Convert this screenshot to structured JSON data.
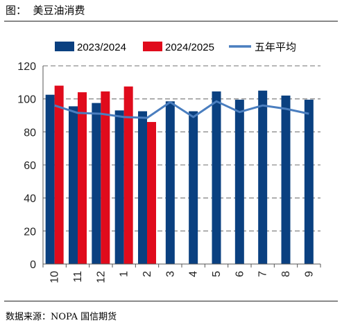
{
  "header": {
    "figure_title": "图：  美豆油消费"
  },
  "footer": {
    "source": "数据来源：NOPA 国信期货"
  },
  "chart_data": {
    "type": "bar",
    "categories": [
      "10",
      "11",
      "12",
      "1",
      "2",
      "3",
      "4",
      "5",
      "6",
      "7",
      "8",
      "9"
    ],
    "series": [
      {
        "name": "2023/2024",
        "kind": "bar",
        "color": "#0a4080",
        "values": [
          102.5,
          95.5,
          97.5,
          93,
          92.5,
          98.5,
          92.5,
          104.5,
          99.5,
          105,
          102,
          99.5
        ]
      },
      {
        "name": "2024/2025",
        "kind": "bar",
        "color": "#e00b1c",
        "values": [
          108,
          104,
          104.5,
          107.5,
          86,
          null,
          null,
          null,
          null,
          null,
          null,
          null
        ]
      },
      {
        "name": "五年平均",
        "kind": "line",
        "color": "#4a7ebf",
        "values": [
          96,
          91.5,
          91,
          89,
          88.5,
          98,
          89,
          98.5,
          92,
          96,
          94,
          91
        ]
      }
    ],
    "ylim": [
      0,
      120
    ],
    "yticks": [
      0,
      20,
      40,
      60,
      80,
      100,
      120
    ],
    "grid": true,
    "legend": "top"
  }
}
